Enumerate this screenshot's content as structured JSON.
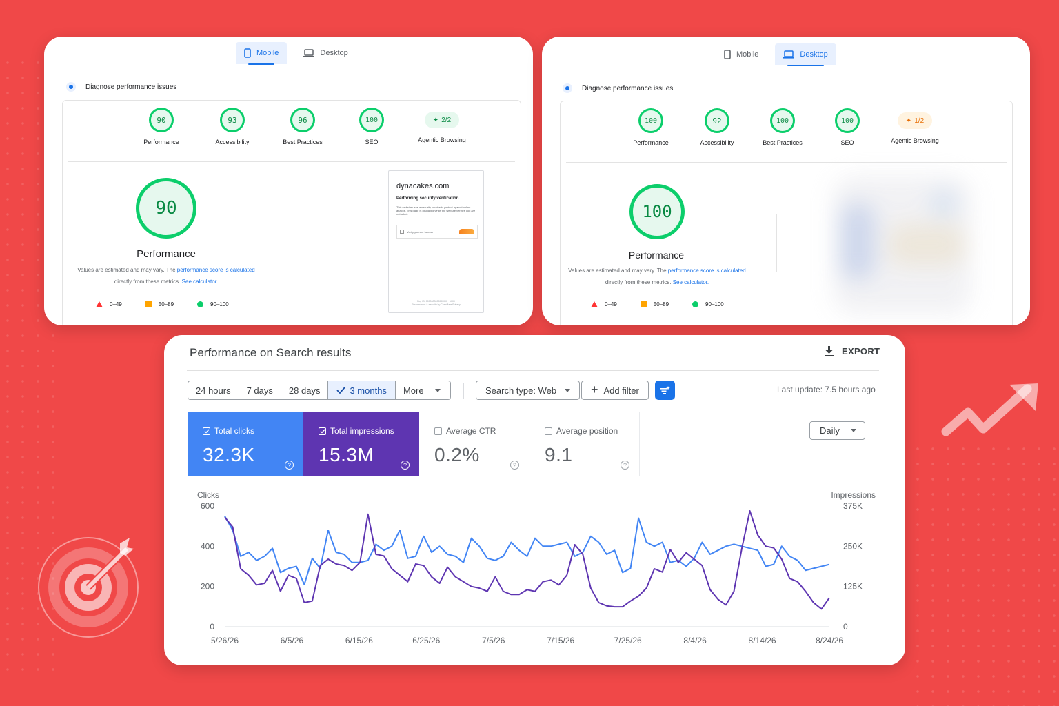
{
  "psi_mobile": {
    "tabs": [
      {
        "label": "Mobile",
        "active": true
      },
      {
        "label": "Desktop",
        "active": false
      }
    ],
    "diagnose_label": "Diagnose performance issues",
    "gauges": [
      {
        "value": "90",
        "label": "Performance"
      },
      {
        "value": "93",
        "label": "Accessibility"
      },
      {
        "value": "96",
        "label": "Best Practices"
      },
      {
        "value": "100",
        "label": "SEO"
      }
    ],
    "agentic": {
      "value": "2/2",
      "label": "Agentic Browsing"
    },
    "big_score": "90",
    "big_label": "Performance",
    "note_pre": "Values are estimated and may vary. The ",
    "note_link1": "performance score is calculated",
    "note_mid": "directly from these metrics. ",
    "note_link2": "See calculator.",
    "legend": [
      "0–49",
      "50–89",
      "90–100"
    ],
    "screenshot": {
      "site": "dynacakes.com",
      "heading": "Performing security verification",
      "paragraph": "This website uses a security service to protect against online attacks. This page is displayed while the website verifies you are not a bot.",
      "verify": "Verify you are human",
      "footer1": "Ray ID: 0000000000000000 · 1000",
      "footer2": "Performance & security by Cloudflare    Privacy"
    }
  },
  "psi_desktop": {
    "tabs": [
      {
        "label": "Mobile",
        "active": false
      },
      {
        "label": "Desktop",
        "active": true
      }
    ],
    "diagnose_label": "Diagnose performance issues",
    "gauges": [
      {
        "value": "100",
        "label": "Performance"
      },
      {
        "value": "92",
        "label": "Accessibility"
      },
      {
        "value": "100",
        "label": "Best Practices"
      },
      {
        "value": "100",
        "label": "SEO"
      }
    ],
    "agentic": {
      "value": "1/2",
      "label": "Agentic Browsing"
    },
    "big_score": "100",
    "big_label": "Performance",
    "note_pre": "Values are estimated and may vary. The ",
    "note_link1": "performance score is calculated",
    "note_mid": "directly from these metrics. ",
    "note_link2": "See calculator.",
    "legend": [
      "0–49",
      "50–89",
      "90–100"
    ]
  },
  "gsc": {
    "title": "Performance on Search results",
    "export_label": "EXPORT",
    "ranges": [
      "24 hours",
      "7 days",
      "28 days",
      "3 months",
      "More"
    ],
    "active_range": "3 months",
    "search_type": "Search type: Web",
    "add_filter": "Add filter",
    "last_update": "Last update: 7.5 hours ago",
    "granularity": "Daily",
    "metrics": [
      {
        "label": "Total clicks",
        "value": "32.3K",
        "checked": true
      },
      {
        "label": "Total impressions",
        "value": "15.3M",
        "checked": true
      },
      {
        "label": "Average CTR",
        "value": "0.2%",
        "checked": false
      },
      {
        "label": "Average position",
        "value": "9.1",
        "checked": false
      }
    ],
    "colors": {
      "clicks": "#4285f4",
      "impressions": "#5e35b1"
    }
  },
  "chart_data": {
    "type": "line",
    "xlabel": "",
    "ylabel": "Clicks",
    "y2label": "Impressions",
    "ylim": [
      0,
      600
    ],
    "y2lim": [
      0,
      375000
    ],
    "y_ticks": [
      "0",
      "200",
      "400",
      "600"
    ],
    "y2_ticks": [
      "0",
      "125K",
      "250K",
      "375K"
    ],
    "x_ticks": [
      "5/26/26",
      "6/5/26",
      "6/15/26",
      "6/25/26",
      "7/5/26",
      "7/15/26",
      "7/25/26",
      "8/4/26",
      "8/14/26",
      "8/24/26"
    ],
    "series": [
      {
        "name": "Clicks",
        "axis": "left",
        "color": "#4285f4",
        "values": [
          550,
          480,
          350,
          370,
          330,
          350,
          390,
          270,
          290,
          300,
          210,
          340,
          290,
          480,
          370,
          360,
          320,
          320,
          330,
          410,
          380,
          400,
          480,
          340,
          350,
          450,
          370,
          400,
          360,
          350,
          320,
          440,
          400,
          340,
          330,
          350,
          420,
          380,
          350,
          440,
          400,
          400,
          410,
          420,
          350,
          370,
          450,
          420,
          360,
          380,
          270,
          290,
          540,
          420,
          400,
          420,
          320,
          330,
          300,
          340,
          420,
          360,
          380,
          400,
          410,
          400,
          390,
          380,
          300,
          310,
          400,
          350,
          330,
          280,
          290,
          300,
          310
        ]
      },
      {
        "name": "Impressions",
        "axis": "right",
        "color": "#5e35b1",
        "values": [
          340000,
          310000,
          180000,
          160000,
          130000,
          135000,
          175000,
          110000,
          160000,
          150000,
          75000,
          80000,
          190000,
          210000,
          195000,
          190000,
          175000,
          200000,
          350000,
          225000,
          220000,
          180000,
          160000,
          140000,
          195000,
          190000,
          155000,
          135000,
          185000,
          155000,
          140000,
          125000,
          120000,
          110000,
          155000,
          110000,
          100000,
          100000,
          115000,
          110000,
          140000,
          145000,
          130000,
          160000,
          255000,
          225000,
          120000,
          75000,
          65000,
          62000,
          62000,
          80000,
          95000,
          120000,
          180000,
          170000,
          240000,
          200000,
          230000,
          210000,
          190000,
          115000,
          85000,
          68000,
          110000,
          245000,
          360000,
          285000,
          250000,
          245000,
          210000,
          150000,
          140000,
          110000,
          75000,
          55000,
          90000
        ]
      }
    ]
  }
}
